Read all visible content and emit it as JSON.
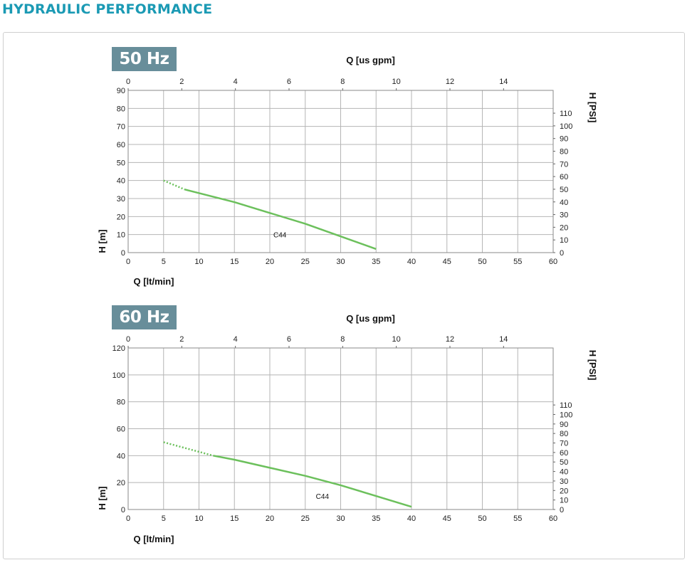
{
  "header": {
    "title": "HYDRAULIC PERFORMANCE"
  },
  "colors": {
    "title": "#1b9ab4",
    "badge": "#688e9a",
    "curve": "#6cc05c",
    "grid": "#b5b5b5"
  },
  "chart_data": [
    {
      "type": "line",
      "badge": "50 Hz",
      "x": {
        "label": "Q [lt/min]",
        "range": [
          0,
          60
        ],
        "ticks": [
          0,
          5,
          10,
          15,
          20,
          25,
          30,
          35,
          40,
          45,
          50,
          55,
          60
        ]
      },
      "x_top": {
        "label": "Q [us gpm]",
        "range": [
          0,
          15.85
        ],
        "ticks": [
          0,
          2,
          4,
          6,
          8,
          10,
          12,
          14
        ]
      },
      "y": {
        "label": "H [m]",
        "range": [
          0,
          90
        ],
        "ticks": [
          0,
          10,
          20,
          30,
          40,
          50,
          60,
          70,
          80,
          90
        ]
      },
      "y_right": {
        "label": "H [PSI]",
        "range": [
          0,
          128
        ],
        "ticks": [
          0,
          10,
          20,
          30,
          40,
          50,
          60,
          70,
          80,
          90,
          100,
          110
        ]
      },
      "grid": true,
      "series": [
        {
          "name": "C44",
          "dotted_points": [
            [
              5,
              40
            ],
            [
              8,
              35
            ]
          ],
          "points": [
            [
              8,
              35
            ],
            [
              15,
              28
            ],
            [
              20,
              22
            ],
            [
              25,
              16
            ],
            [
              30,
              9
            ],
            [
              35,
              2
            ]
          ]
        }
      ]
    },
    {
      "type": "line",
      "badge": "60 Hz",
      "x": {
        "label": "Q [lt/min]",
        "range": [
          0,
          60
        ],
        "ticks": [
          0,
          5,
          10,
          15,
          20,
          25,
          30,
          35,
          40,
          45,
          50,
          55,
          60
        ]
      },
      "x_top": {
        "label": "Q [us gpm]",
        "range": [
          0,
          15.85
        ],
        "ticks": [
          0,
          2,
          4,
          6,
          8,
          10,
          12,
          14
        ]
      },
      "y": {
        "label": "H [m]",
        "range": [
          0,
          120
        ],
        "ticks": [
          0,
          20,
          40,
          60,
          80,
          100,
          120
        ]
      },
      "y_right": {
        "label": "H [PSI]",
        "range": [
          0,
          170
        ],
        "ticks": [
          0,
          10,
          20,
          30,
          40,
          50,
          60,
          70,
          80,
          90,
          100,
          110
        ]
      },
      "grid": true,
      "series": [
        {
          "name": "C44",
          "dotted_points": [
            [
              5,
              50
            ],
            [
              12,
              40
            ]
          ],
          "points": [
            [
              12,
              40
            ],
            [
              15,
              37
            ],
            [
              20,
              31
            ],
            [
              25,
              25
            ],
            [
              30,
              18
            ],
            [
              35,
              10
            ],
            [
              40,
              2
            ]
          ]
        }
      ]
    }
  ]
}
